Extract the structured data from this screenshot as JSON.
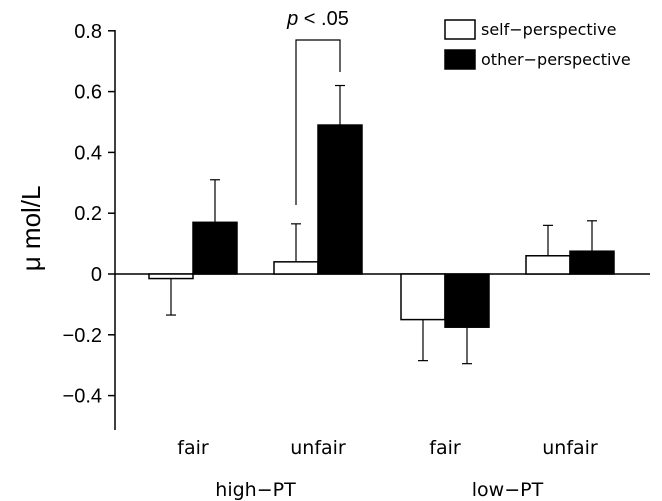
{
  "chart_data": {
    "type": "bar",
    "title": "",
    "xlabel": "",
    "ylabel": "μ mol/L",
    "ylim": [
      -0.5,
      0.8
    ],
    "yticks": [
      {
        "value": 0.8,
        "label": "0.8"
      },
      {
        "value": 0.6,
        "label": "0.6"
      },
      {
        "value": 0.4,
        "label": "0.4"
      },
      {
        "value": 0.2,
        "label": "0.2"
      },
      {
        "value": 0,
        "label": "0"
      },
      {
        "value": -0.2,
        "label": "−0.2"
      },
      {
        "value": -0.4,
        "label": "−0.4"
      }
    ],
    "groups": [
      {
        "label": "high−PT",
        "categories": [
          "fair",
          "unfair"
        ]
      },
      {
        "label": "low−PT",
        "categories": [
          "fair",
          "unfair"
        ]
      }
    ],
    "categories": [
      "fair",
      "unfair",
      "fair",
      "unfair"
    ],
    "series": [
      {
        "name": "self−perspective",
        "color": "#ffffff",
        "values": [
          -0.015,
          0.04,
          -0.15,
          0.06
        ],
        "errors": [
          0.12,
          0.125,
          0.135,
          0.1
        ]
      },
      {
        "name": "other−perspective",
        "color": "#000000",
        "values": [
          0.17,
          0.49,
          -0.175,
          0.075
        ],
        "errors": [
          0.14,
          0.13,
          0.12,
          0.1
        ]
      }
    ],
    "legend_position": "top-right",
    "annotation": {
      "text_italic": "p",
      "text_rest": " < .05",
      "category_index": 1
    },
    "grid": false
  }
}
